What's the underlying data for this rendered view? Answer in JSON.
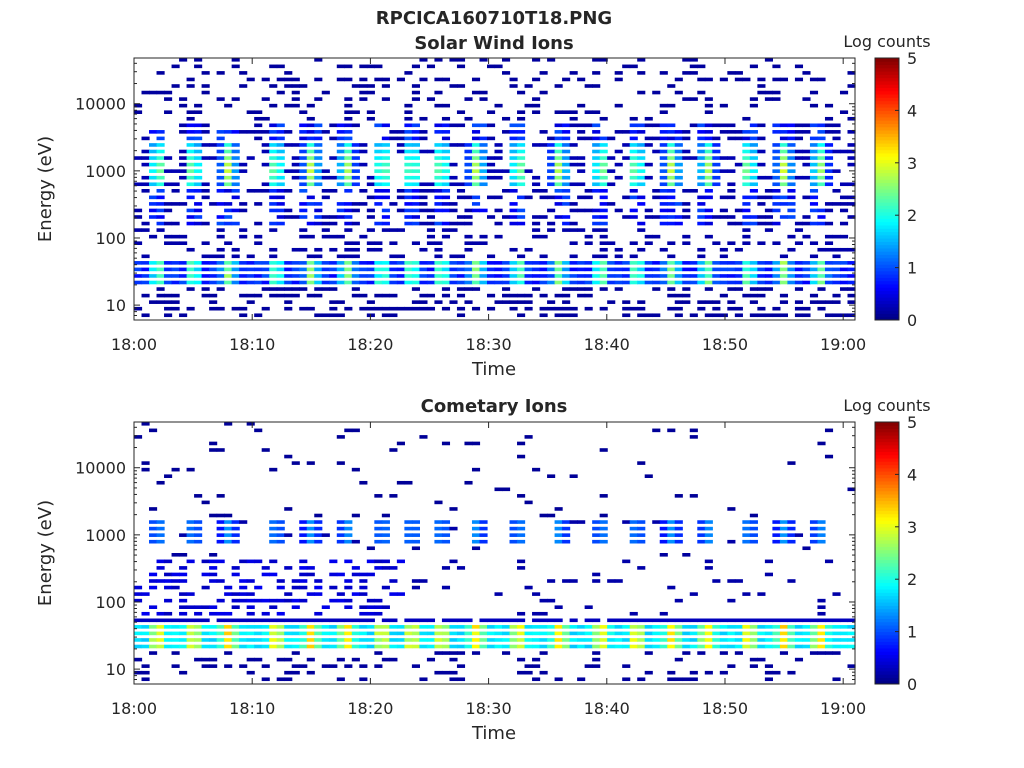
{
  "figure_title": "RPCICA160710T18.PNG",
  "colormap": [
    "#00007f",
    "#0000ff",
    "#007fff",
    "#00ffff",
    "#7fff7f",
    "#ffff00",
    "#ff7f00",
    "#ff0000",
    "#7f0000"
  ],
  "colorbar": {
    "label": "Log counts",
    "min": 0,
    "max": 5,
    "ticks": [
      "0",
      "1",
      "2",
      "3",
      "4",
      "5"
    ]
  },
  "chart_data": [
    {
      "type": "heatmap",
      "title": "Solar Wind Ions",
      "xlabel": "Time",
      "ylabel": "Energy (eV)",
      "xlim": [
        "18:00",
        "19:01"
      ],
      "xticks": [
        "18:00",
        "18:10",
        "18:20",
        "18:30",
        "18:40",
        "18:50",
        "19:00"
      ],
      "yscale": "log",
      "ylim": [
        6,
        48000
      ],
      "yticks": [
        "10",
        "100",
        "1000",
        "10000"
      ],
      "features": {
        "peak_energy_band_eV": [
          700,
          1500
        ],
        "low_energy_band_eV": [
          20,
          45
        ],
        "peak_log_counts_high_band": 3.0,
        "peak_log_counts_low_band": 2.2,
        "burst_times_min": [
          2,
          5,
          8,
          12,
          15,
          18,
          21,
          23.5,
          26,
          29,
          32.5,
          36,
          39.5,
          42.5,
          45.5,
          48.5,
          52,
          55,
          58
        ]
      }
    },
    {
      "type": "heatmap",
      "title": "Cometary Ions",
      "xlabel": "Time",
      "ylabel": "Energy (eV)",
      "xlim": [
        "18:00",
        "19:01"
      ],
      "xticks": [
        "18:00",
        "18:10",
        "18:20",
        "18:30",
        "18:40",
        "18:50",
        "19:00"
      ],
      "yscale": "log",
      "ylim": [
        6,
        48000
      ],
      "yticks": [
        "10",
        "100",
        "1000",
        "10000"
      ],
      "features": {
        "peak_energy_band_eV": [
          20,
          45
        ],
        "peak_log_counts": 3.2,
        "secondary_band_eV": [
          700,
          1500
        ],
        "secondary_log_counts": 1.2
      }
    }
  ]
}
